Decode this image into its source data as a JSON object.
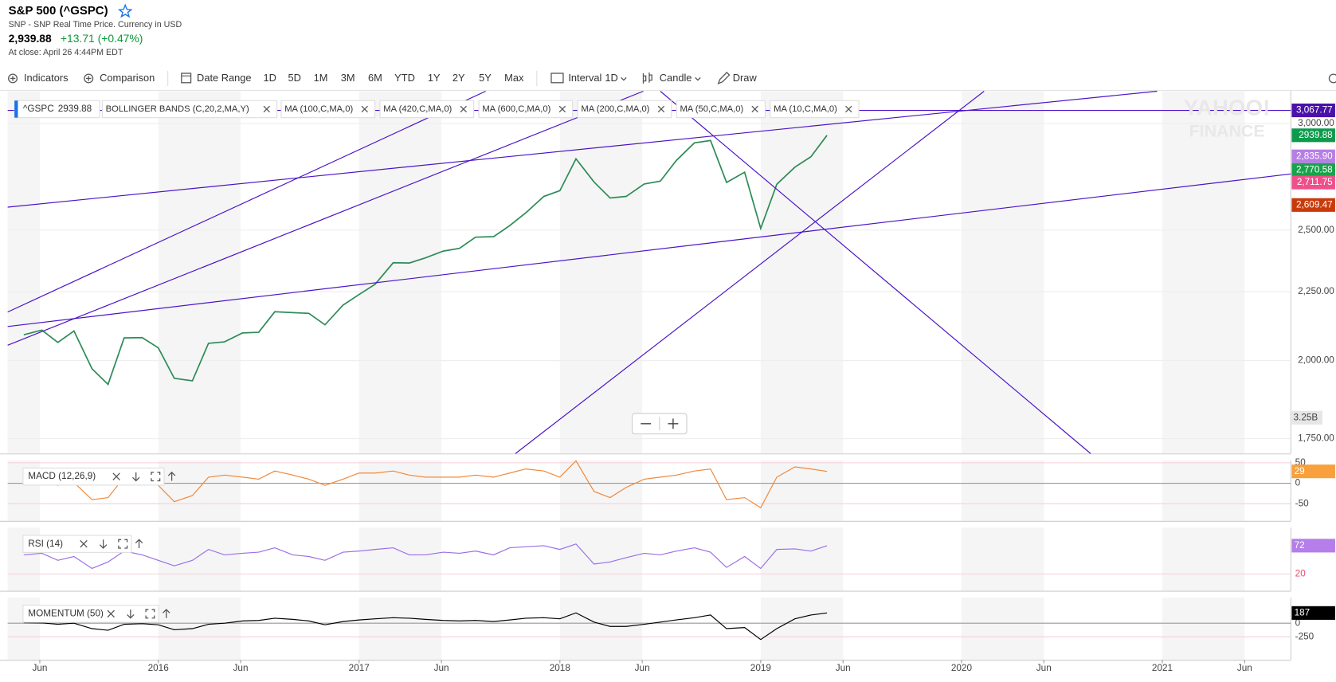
{
  "header": {
    "title": "S&P 500 (^GSPC)",
    "subtitle": "SNP - SNP Real Time Price. Currency in USD",
    "price": "2,939.88",
    "change": "+13.71 (+0.47%)",
    "close_note": "At close: April 26 4:44PM EDT"
  },
  "toolbar": [
    "Indicators",
    "Comparison",
    "Date Range",
    "1D",
    "5D",
    "1M",
    "3M",
    "6M",
    "YTD",
    "1Y",
    "2Y",
    "5Y",
    "Max",
    "Interval",
    "1D",
    "Candle",
    "Draw"
  ],
  "watermark": [
    "YAHOO!",
    "FINANCE"
  ],
  "chart_data": [
    {
      "type": "line",
      "log": true,
      "grid": true,
      "x": [
        2015.33,
        2015.42,
        2015.5,
        2015.58,
        2015.67,
        2015.75,
        2015.83,
        2015.92,
        2016,
        2016.08,
        2016.17,
        2016.25,
        2016.33,
        2016.42,
        2016.5,
        2016.58,
        2016.67,
        2016.75,
        2016.83,
        2016.92,
        2017,
        2017.08,
        2017.17,
        2017.25,
        2017.33,
        2017.42,
        2017.5,
        2017.58,
        2017.67,
        2017.75,
        2017.83,
        2017.92,
        2018,
        2018.08,
        2018.17,
        2018.25,
        2018.33,
        2018.42,
        2018.5,
        2018.58,
        2018.67,
        2018.75,
        2018.83,
        2018.92,
        2019,
        2019.08,
        2019.17,
        2019.25,
        2019.33
      ],
      "series": [
        {
          "name": "^GSPC",
          "color": "#2e8b57",
          "values": [
            2090,
            2107,
            2063,
            2104,
            1972,
            1920,
            2079,
            2080,
            2044,
            1940,
            1932,
            2060,
            2065,
            2097,
            2099,
            2174,
            2171,
            2168,
            2126,
            2199,
            2239,
            2279,
            2364,
            2363,
            2384,
            2412,
            2423,
            2470,
            2472,
            2519,
            2575,
            2648,
            2674,
            2824,
            2714,
            2641,
            2648,
            2705,
            2718,
            2816,
            2902,
            2914,
            2712,
            2760,
            2507,
            2704,
            2784,
            2834,
            2939.88
          ]
        }
      ],
      "indicators": [
        "BOLLINGER BANDS (C,20,2,MA,Y)",
        "MA (100,C,MA,0)",
        "MA (420,C,MA,0)",
        "MA (600,C,MA,0)",
        "MA (200,C,MA,0)",
        "MA (50,C,MA,0)",
        "MA (10,C,MA,0)"
      ],
      "xlim": [
        2015.25,
        2021.64
      ],
      "xticks": [
        {
          "value": 2015.41,
          "label": "Jun"
        },
        2016,
        {
          "value": 2016.41,
          "label": "Jun"
        },
        2017,
        {
          "value": 2017.41,
          "label": "Jun"
        },
        2018,
        {
          "value": 2018.41,
          "label": "Jun"
        },
        2019,
        {
          "value": 2019.41,
          "label": "Jun"
        },
        2020,
        {
          "value": 2020.41,
          "label": "Jun"
        },
        2021,
        {
          "value": 2021.41,
          "label": "Jun"
        }
      ],
      "ylim": [
        1706,
        3170
      ],
      "yticks": [
        {
          "value": 3000,
          "label": "3,000.00"
        },
        {
          "value": 2500,
          "label": "2,500.00"
        },
        {
          "value": 2250,
          "label": "2,250.00"
        },
        {
          "value": 2000,
          "label": "2,000.00"
        },
        {
          "value": 1750,
          "label": "1,750.00"
        }
      ],
      "price_tags": [
        {
          "value": 3067.77,
          "label": "3,067.77",
          "color": "#4a12a8"
        },
        {
          "value": 2835.9,
          "label": "2,835.90",
          "color": "#b77ee6"
        },
        {
          "value": 2770.58,
          "label": "2,770.58",
          "color": "#16a34a"
        },
        {
          "value": 2711.75,
          "label": "2,711.75",
          "color": "#ef4f8b"
        },
        {
          "value": 2609.47,
          "label": "2,609.47",
          "color": "#c93a0a"
        }
      ],
      "last_color": "#0e9a4c",
      "volume_label": "3.25B"
    },
    {
      "type": "line",
      "series": [
        {
          "name": "MACD (12,26,9)",
          "color": "#f0883a",
          "values": [
            10,
            8,
            -5,
            2,
            -40,
            -35,
            15,
            20,
            -5,
            -45,
            -30,
            15,
            20,
            15,
            10,
            30,
            20,
            10,
            -5,
            10,
            25,
            25,
            30,
            20,
            15,
            15,
            15,
            20,
            15,
            25,
            35,
            30,
            15,
            55,
            -20,
            -35,
            -10,
            10,
            15,
            20,
            30,
            35,
            -40,
            -35,
            -60,
            15,
            40,
            35,
            29
          ]
        }
      ],
      "ylim": [
        -92,
        56
      ],
      "yticks": [
        50,
        0,
        -50
      ],
      "tag_color": "#f7a03c"
    },
    {
      "type": "line",
      "series": [
        {
          "name": "RSI (14)",
          "color": "#9b6ee8",
          "values": [
            55,
            58,
            45,
            52,
            30,
            42,
            62,
            55,
            45,
            35,
            45,
            65,
            55,
            58,
            60,
            68,
            55,
            52,
            45,
            60,
            62,
            65,
            68,
            55,
            55,
            60,
            58,
            62,
            55,
            68,
            70,
            72,
            65,
            75,
            38,
            42,
            50,
            58,
            55,
            62,
            68,
            60,
            32,
            52,
            30,
            65,
            66,
            62,
            72
          ]
        }
      ],
      "ylim": [
        -11,
        105
      ],
      "yticks": [
        20
      ],
      "tag_color": "#b57ee8"
    },
    {
      "type": "line",
      "series": [
        {
          "name": "MOMENTUM (50)",
          "color": "#000000",
          "values": [
            10,
            5,
            -20,
            0,
            -100,
            -130,
            -20,
            -10,
            -30,
            -120,
            -100,
            -20,
            0,
            40,
            50,
            90,
            70,
            40,
            -30,
            30,
            60,
            80,
            100,
            90,
            70,
            50,
            40,
            50,
            30,
            60,
            90,
            100,
            80,
            190,
            20,
            -60,
            -60,
            -20,
            20,
            60,
            100,
            150,
            -100,
            -80,
            -300,
            -100,
            80,
            150,
            187
          ]
        }
      ],
      "ylim": [
        -672,
        469
      ],
      "yticks": [
        0,
        -250
      ],
      "tag_color": "#000000"
    }
  ]
}
